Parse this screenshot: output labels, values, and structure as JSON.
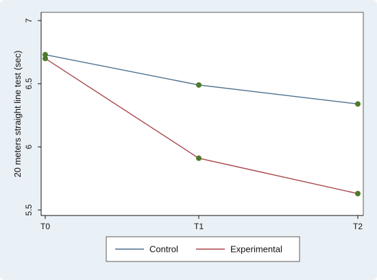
{
  "chart_data": {
    "type": "line",
    "title": "",
    "xlabel": "",
    "ylabel": "20 meters straight line test (sec)",
    "categories": [
      "T0",
      "T1",
      "T2"
    ],
    "y_ticks": [
      "5.5",
      "6",
      "6.5",
      "7"
    ],
    "ylim": [
      5.5,
      7
    ],
    "grid": false,
    "legend_position": "bottom",
    "series": [
      {
        "name": "Control",
        "values": [
          6.73,
          6.49,
          6.34
        ],
        "color": "#4a6f8f"
      },
      {
        "name": "Experimental",
        "values": [
          6.7,
          5.91,
          5.63
        ],
        "color": "#a8454a"
      }
    ],
    "marker_color": "#4e7a2a"
  }
}
